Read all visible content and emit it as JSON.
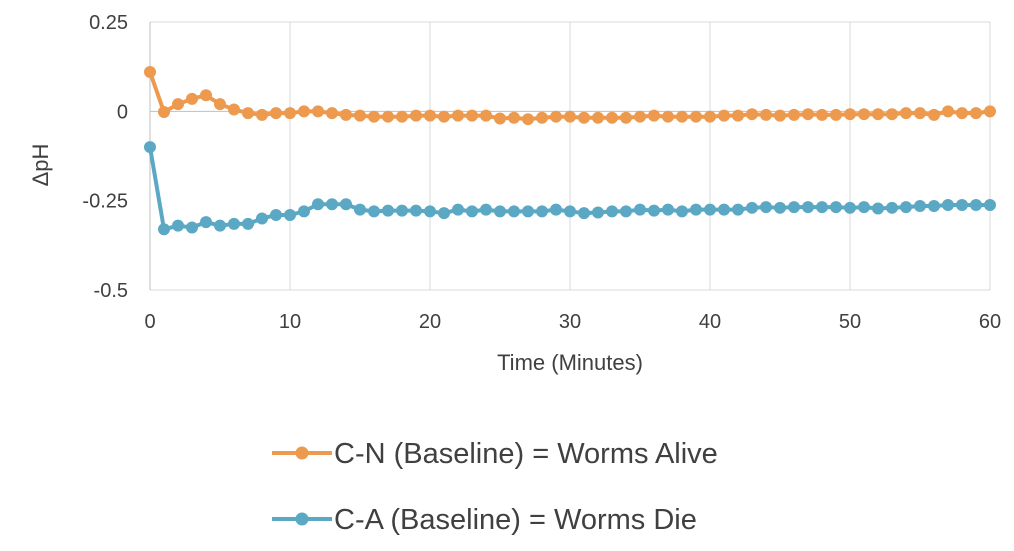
{
  "chart_data": {
    "type": "line",
    "title": "",
    "xlabel": "Time (Minutes)",
    "ylabel": "ΔpH",
    "xlim": [
      0,
      60
    ],
    "ylim": [
      -0.5,
      0.25
    ],
    "xticks": [
      0,
      10,
      20,
      30,
      40,
      50,
      60
    ],
    "yticks": [
      0.25,
      0,
      -0.25,
      -0.5
    ],
    "ytick_labels": [
      "0.25",
      "0",
      "-0.25",
      "-0.5"
    ],
    "grid": "vertical",
    "legend_position": "bottom",
    "x": [
      0,
      1,
      2,
      3,
      4,
      5,
      6,
      7,
      8,
      9,
      10,
      11,
      12,
      13,
      14,
      15,
      16,
      17,
      18,
      19,
      20,
      21,
      22,
      23,
      24,
      25,
      26,
      27,
      28,
      29,
      30,
      31,
      32,
      33,
      34,
      35,
      36,
      37,
      38,
      39,
      40,
      41,
      42,
      43,
      44,
      45,
      46,
      47,
      48,
      49,
      50,
      51,
      52,
      53,
      54,
      55,
      56,
      57,
      58,
      59,
      60
    ],
    "series": [
      {
        "name": "C-N (Baseline) = Worms Alive",
        "color": "#ED9A4F",
        "values": [
          0.11,
          -0.002,
          0.02,
          0.035,
          0.045,
          0.02,
          0.005,
          -0.005,
          -0.01,
          -0.005,
          -0.005,
          0,
          0,
          -0.005,
          -0.01,
          -0.012,
          -0.015,
          -0.015,
          -0.015,
          -0.012,
          -0.012,
          -0.015,
          -0.012,
          -0.012,
          -0.012,
          -0.02,
          -0.018,
          -0.022,
          -0.018,
          -0.015,
          -0.015,
          -0.018,
          -0.018,
          -0.018,
          -0.018,
          -0.015,
          -0.012,
          -0.015,
          -0.015,
          -0.015,
          -0.015,
          -0.012,
          -0.012,
          -0.008,
          -0.01,
          -0.012,
          -0.01,
          -0.008,
          -0.01,
          -0.01,
          -0.008,
          -0.008,
          -0.008,
          -0.008,
          -0.005,
          -0.005,
          -0.01,
          0,
          -0.005,
          -0.005,
          0
        ]
      },
      {
        "name": "C-A (Baseline) = Worms Die",
        "color": "#5BA8C4",
        "values": [
          -0.1,
          -0.33,
          -0.32,
          -0.325,
          -0.31,
          -0.32,
          -0.315,
          -0.315,
          -0.3,
          -0.29,
          -0.29,
          -0.28,
          -0.26,
          -0.26,
          -0.26,
          -0.275,
          -0.28,
          -0.278,
          -0.278,
          -0.278,
          -0.28,
          -0.285,
          -0.275,
          -0.28,
          -0.275,
          -0.28,
          -0.28,
          -0.28,
          -0.28,
          -0.275,
          -0.28,
          -0.285,
          -0.283,
          -0.28,
          -0.28,
          -0.275,
          -0.278,
          -0.275,
          -0.28,
          -0.275,
          -0.275,
          -0.275,
          -0.275,
          -0.27,
          -0.268,
          -0.27,
          -0.268,
          -0.268,
          -0.268,
          -0.268,
          -0.27,
          -0.268,
          -0.272,
          -0.27,
          -0.268,
          -0.265,
          -0.265,
          -0.262,
          -0.262,
          -0.262,
          -0.262
        ]
      }
    ]
  }
}
